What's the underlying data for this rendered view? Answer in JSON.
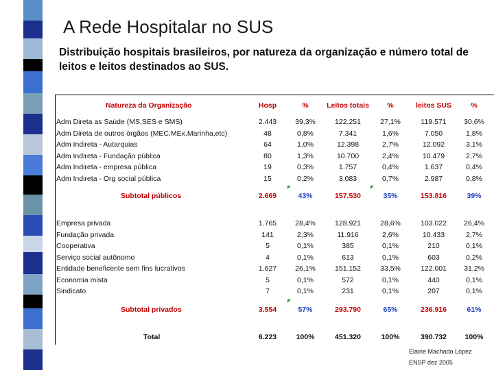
{
  "title": "A Rede Hospitalar no SUS",
  "subtitle": "Distribuição hospitais brasileiros, por natureza da organização e número total de leitos  e leitos destinados ao SUS.",
  "colors": {
    "header_red": "#c00000",
    "pct_blue": "#1f3fbf"
  },
  "table": {
    "headers": [
      "Natureza da Organização",
      "Hosp",
      "%",
      "Leitos totais",
      "%",
      "leitos SUS",
      "%"
    ],
    "public_rows": [
      [
        "Adm Direta as Saúde (MS,SES e SMS)",
        "2.443",
        "39,3%",
        "122.251",
        "27,1%",
        "119.571",
        "30,6%"
      ],
      [
        "Adm Direta de outros òrgãos (MEC,MEx,Marinha,etc)",
        "48",
        "0,8%",
        "7.341",
        "1,6%",
        "7.050",
        "1,8%"
      ],
      [
        "Adm Indireta - Autarquias",
        "64",
        "1,0%",
        "12.398",
        "2,7%",
        "12.092",
        "3,1%"
      ],
      [
        "Adm Indireta - Fundação pública",
        "80",
        "1,3%",
        "10.700",
        "2,4%",
        "10.479",
        "2,7%"
      ],
      [
        "Adm Indireta - empresa pública",
        "19",
        "0,3%",
        "1.757",
        "0,4%",
        "1.637",
        "0,4%"
      ],
      [
        "Adm Indireta - Org social pública",
        "15",
        "0,2%",
        "3.083",
        "0,7%",
        "2.987",
        "0,8%"
      ]
    ],
    "subtotal_public": [
      "Subtotal públicos",
      "2.669",
      "43%",
      "157.530",
      "35%",
      "153.816",
      "39%"
    ],
    "private_rows": [
      [
        "Empresa privada",
        "1.765",
        "28,4%",
        "128.921",
        "28,6%",
        "103.022",
        "26,4%"
      ],
      [
        "Fundação privada",
        "141",
        "2,3%",
        "11.916",
        "2,6%",
        "10.433",
        "2,7%"
      ],
      [
        "Cooperativa",
        "5",
        "0,1%",
        "385",
        "0,1%",
        "210",
        "0,1%"
      ],
      [
        "Serviço social autônomo",
        "4",
        "0,1%",
        "613",
        "0,1%",
        "603",
        "0,2%"
      ],
      [
        "Entidade beneficente sem fins lucrativos",
        "1.627",
        "26,1%",
        "151.152",
        "33,5%",
        "122.001",
        "31,2%"
      ],
      [
        "Economia mista",
        "5",
        "0,1%",
        "572",
        "0,1%",
        "440",
        "0,1%"
      ],
      [
        "Sindicato",
        "7",
        "0,1%",
        "231",
        "0,1%",
        "207",
        "0,1%"
      ]
    ],
    "subtotal_private": [
      "Subtotal privados",
      "3.554",
      "57%",
      "293.790",
      "65%",
      "236.916",
      "61%"
    ],
    "total": [
      "Total",
      "6.223",
      "100%",
      "451.320",
      "100%",
      "390.732",
      "100%"
    ]
  },
  "footer": {
    "author": "Elaine Machado López",
    "source": "ENSP dez 2005"
  }
}
